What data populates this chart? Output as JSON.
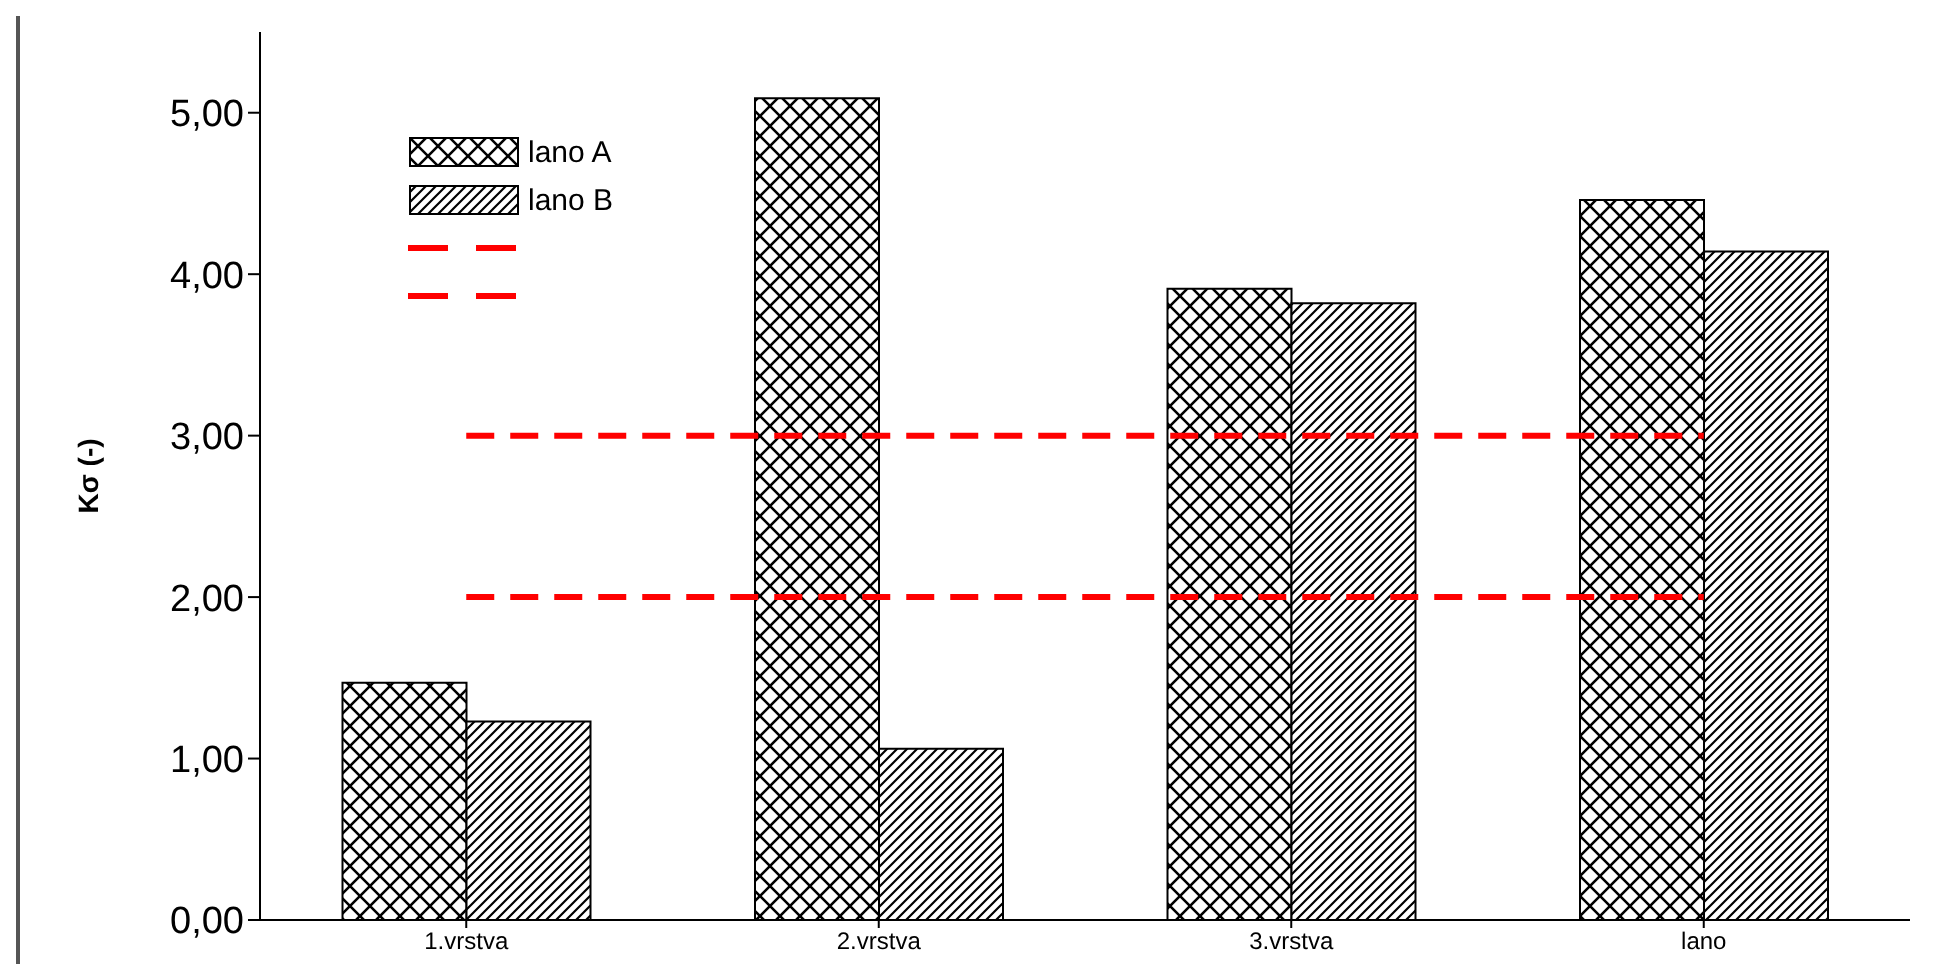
{
  "chart_data": {
    "type": "bar",
    "ylabel": "Kσ (-)",
    "categories": [
      "1.vrstva",
      "2.vrstva",
      "3.vrstva",
      "lano"
    ],
    "series": [
      {
        "name": "lano A",
        "color": "#000000",
        "values": [
          1.47,
          5.09,
          3.91,
          4.46
        ]
      },
      {
        "name": "lano B",
        "color": "#000000",
        "values": [
          1.23,
          1.06,
          3.82,
          4.14
        ]
      }
    ],
    "ylim": [
      0,
      5.5
    ],
    "yticks": [
      {
        "value": 0,
        "label": "0,00"
      },
      {
        "value": 1,
        "label": "1,00"
      },
      {
        "value": 2,
        "label": "2,00"
      },
      {
        "value": 3,
        "label": "3,00"
      },
      {
        "value": 4,
        "label": "4,00"
      },
      {
        "value": 5,
        "label": "5,00"
      }
    ],
    "ref_lines": [
      {
        "axis": "y",
        "value": 3,
        "color": "#ff0000",
        "line_style": "dashed"
      },
      {
        "axis": "y",
        "value": 2,
        "color": "#ff0000",
        "line_style": "dashed"
      }
    ],
    "grid": false,
    "legend": "top left"
  }
}
